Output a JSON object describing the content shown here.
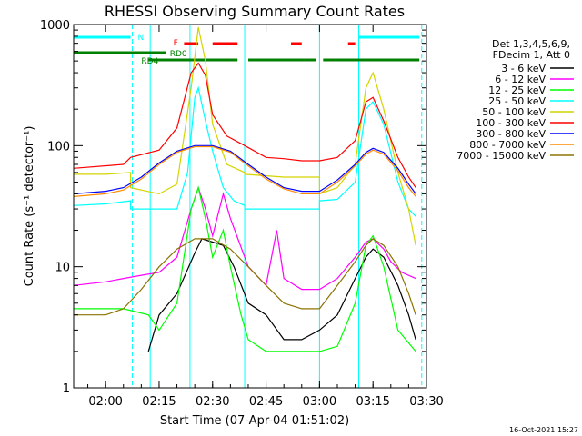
{
  "chart_data": {
    "type": "line",
    "title": "RHESSI Observing Summary Count Rates",
    "xlabel": "Start Time (07-Apr-04 01:51:02)",
    "ylabel": "Count Rate (s⁻¹ detector⁻¹)",
    "y_scale": "log",
    "ylim": [
      1,
      1000
    ],
    "xlim": [
      "01:51:02",
      "03:30:00"
    ],
    "x_ticks": [
      "02:00",
      "02:15",
      "02:30",
      "02:45",
      "03:00",
      "03:15",
      "03:30"
    ],
    "y_ticks": [
      "1",
      "10",
      "100",
      "1000"
    ],
    "footer_date": "16-Oct-2021 15:27",
    "legend": {
      "position": "right",
      "header_lines": [
        "Det 1,3,4,5,6,9,",
        "FDecim 1, Att 0"
      ]
    },
    "series": [
      {
        "name": "3 - 6 keV",
        "color": "#000000",
        "x": [
          "02:12",
          "02:15",
          "02:20",
          "02:25",
          "02:27",
          "02:30",
          "02:33",
          "02:36",
          "02:40",
          "02:45",
          "02:50",
          "02:55",
          "03:00",
          "03:05",
          "03:10",
          "03:13",
          "03:15",
          "03:18",
          "03:22",
          "03:25",
          "03:27"
        ],
        "y": [
          2,
          4,
          6,
          13,
          17,
          16,
          15,
          10,
          5,
          4,
          2.5,
          2.5,
          3,
          4,
          8,
          12,
          14,
          12,
          7,
          4,
          2.5
        ]
      },
      {
        "name": "6 - 12 keV",
        "color": "#ff00ff",
        "x": [
          "01:51",
          "02:00",
          "02:05",
          "02:10",
          "02:15",
          "02:20",
          "02:24",
          "02:26",
          "02:28",
          "02:30",
          "02:33",
          "02:35",
          "02:40",
          "02:45",
          "02:48",
          "02:50",
          "02:55",
          "03:00",
          "03:05",
          "03:10",
          "03:13",
          "03:15",
          "03:18",
          "03:20",
          "03:23",
          "03:27"
        ],
        "y": [
          7,
          7.5,
          8,
          8.5,
          9,
          12,
          30,
          45,
          30,
          18,
          40,
          25,
          10,
          7,
          20,
          8,
          6.5,
          6.5,
          8,
          12,
          16,
          17,
          14,
          11,
          9,
          8
        ]
      },
      {
        "name": "12 - 25 keV",
        "color": "#00ff00",
        "x": [
          "01:51",
          "02:05",
          "02:12",
          "02:15",
          "02:20",
          "02:24",
          "02:26",
          "02:28",
          "02:30",
          "02:33",
          "02:35",
          "02:38",
          "02:40",
          "02:45",
          "02:50",
          "02:55",
          "03:00",
          "03:05",
          "03:10",
          "03:13",
          "03:15",
          "03:18",
          "03:22",
          "03:27"
        ],
        "y": [
          4.5,
          4.5,
          4,
          3,
          5,
          30,
          45,
          25,
          12,
          20,
          10,
          4,
          2.5,
          2,
          2,
          2,
          2,
          2.2,
          5,
          15,
          18,
          10,
          3,
          2
        ]
      },
      {
        "name": "25 - 50 keV",
        "color": "#00ffff",
        "x": [
          "01:51",
          "02:00",
          "02:07",
          "02:07",
          "02:15",
          "02:20",
          "02:23",
          "02:25",
          "02:26",
          "02:28",
          "02:30",
          "02:33",
          "02:36",
          "02:39",
          "02:39",
          "02:50",
          "03:00",
          "03:00",
          "03:05",
          "03:10",
          "03:13",
          "03:15",
          "03:18",
          "03:22",
          "03:25",
          "03:27"
        ],
        "y": [
          32,
          33,
          35,
          30,
          30,
          30,
          60,
          250,
          300,
          160,
          90,
          45,
          35,
          32,
          30,
          30,
          30,
          35,
          36,
          50,
          200,
          230,
          150,
          50,
          30,
          26
        ]
      },
      {
        "name": "50 - 100 keV",
        "color": "#d4d400",
        "x": [
          "01:51",
          "02:00",
          "02:07",
          "02:07",
          "02:15",
          "02:20",
          "02:24",
          "02:26",
          "02:28",
          "02:30",
          "02:34",
          "02:39",
          "02:39",
          "02:50",
          "03:00",
          "03:00",
          "03:05",
          "03:10",
          "03:13",
          "03:15",
          "03:18",
          "03:22",
          "03:25",
          "03:27"
        ],
        "y": [
          58,
          58,
          60,
          45,
          40,
          48,
          300,
          950,
          500,
          150,
          70,
          60,
          58,
          55,
          55,
          40,
          45,
          70,
          300,
          400,
          200,
          60,
          30,
          15
        ]
      },
      {
        "name": "100 - 300 keV",
        "color": "#ff0000",
        "x": [
          "01:51",
          "02:05",
          "02:07",
          "02:15",
          "02:20",
          "02:24",
          "02:26",
          "02:28",
          "02:30",
          "02:34",
          "02:39",
          "02:45",
          "02:50",
          "02:55",
          "03:00",
          "03:05",
          "03:10",
          "03:13",
          "03:15",
          "03:18",
          "03:22",
          "03:25",
          "03:27"
        ],
        "y": [
          65,
          70,
          80,
          92,
          140,
          400,
          480,
          380,
          180,
          120,
          100,
          80,
          78,
          75,
          75,
          80,
          110,
          230,
          250,
          160,
          80,
          55,
          45
        ]
      },
      {
        "name": "300 - 800 keV",
        "color": "#0000ff",
        "x": [
          "01:51",
          "02:00",
          "02:05",
          "02:10",
          "02:15",
          "02:20",
          "02:25",
          "02:30",
          "02:35",
          "02:40",
          "02:45",
          "02:50",
          "02:55",
          "03:00",
          "03:05",
          "03:10",
          "03:13",
          "03:15",
          "03:18",
          "03:22",
          "03:25",
          "03:27"
        ],
        "y": [
          40,
          42,
          45,
          55,
          72,
          90,
          100,
          100,
          90,
          70,
          55,
          45,
          42,
          42,
          52,
          70,
          88,
          95,
          88,
          65,
          48,
          40
        ]
      },
      {
        "name": "800 - 7000 keV",
        "color": "#ff8c00",
        "x": [
          "01:51",
          "02:00",
          "02:05",
          "02:10",
          "02:15",
          "02:20",
          "02:25",
          "02:30",
          "02:35",
          "02:40",
          "02:45",
          "02:50",
          "02:55",
          "03:00",
          "03:05",
          "03:10",
          "03:13",
          "03:15",
          "03:18",
          "03:22",
          "03:25",
          "03:27"
        ],
        "y": [
          38,
          40,
          43,
          53,
          70,
          88,
          98,
          98,
          88,
          68,
          53,
          44,
          40,
          40,
          50,
          68,
          85,
          92,
          85,
          62,
          45,
          38
        ]
      },
      {
        "name": "7000 - 15000 keV",
        "color": "#8b7300",
        "x": [
          "01:51",
          "02:00",
          "02:05",
          "02:10",
          "02:15",
          "02:20",
          "02:25",
          "02:30",
          "02:35",
          "02:40",
          "02:45",
          "02:50",
          "02:55",
          "03:00",
          "03:05",
          "03:10",
          "03:13",
          "03:15",
          "03:18",
          "03:22",
          "03:25",
          "03:27"
        ],
        "y": [
          4,
          4,
          4.5,
          6.5,
          10,
          14,
          17,
          17,
          14,
          10,
          7,
          5,
          4.5,
          4.5,
          7,
          11,
          15,
          17,
          15,
          10,
          6,
          4
        ]
      }
    ],
    "vertical_lines": [
      {
        "x": "02:07:30",
        "style": "dashed",
        "color": "#00ffff"
      },
      {
        "x": "02:12:30",
        "style": "solid",
        "color": "#00ffff"
      },
      {
        "x": "02:23:40",
        "style": "solid",
        "color": "#00ffff"
      },
      {
        "x": "02:39:00",
        "style": "solid",
        "color": "#00ffff"
      },
      {
        "x": "03:00:00",
        "style": "solid",
        "color": "#00ffff"
      },
      {
        "x": "03:11:00",
        "style": "solid",
        "color": "#00ffff"
      },
      {
        "x": "03:28:40",
        "style": "dashed",
        "color": "#00ffff"
      }
    ],
    "flag_bars": [
      {
        "label": "N",
        "color": "#00ffff",
        "segments": [
          [
            "01:51",
            "02:07"
          ],
          [
            "03:11",
            "03:28"
          ]
        ],
        "label_at": "02:09"
      },
      {
        "label": "F",
        "color": "#ff0000",
        "segments": [
          [
            "02:22",
            "02:26"
          ],
          [
            "02:30",
            "02:37"
          ],
          [
            "02:52",
            "02:55"
          ],
          [
            "03:08",
            "03:10"
          ]
        ],
        "label_at": "02:19"
      },
      {
        "label": "RD0",
        "color": "#008000",
        "segments": [
          [
            "01:51",
            "02:17"
          ]
        ],
        "label_at": "02:18"
      },
      {
        "label": "RD4",
        "color": "#008000",
        "segments": [
          [
            "02:12",
            "02:37"
          ],
          [
            "02:40",
            "02:59"
          ],
          [
            "03:01",
            "03:28"
          ]
        ],
        "label_at": "02:10"
      }
    ]
  }
}
